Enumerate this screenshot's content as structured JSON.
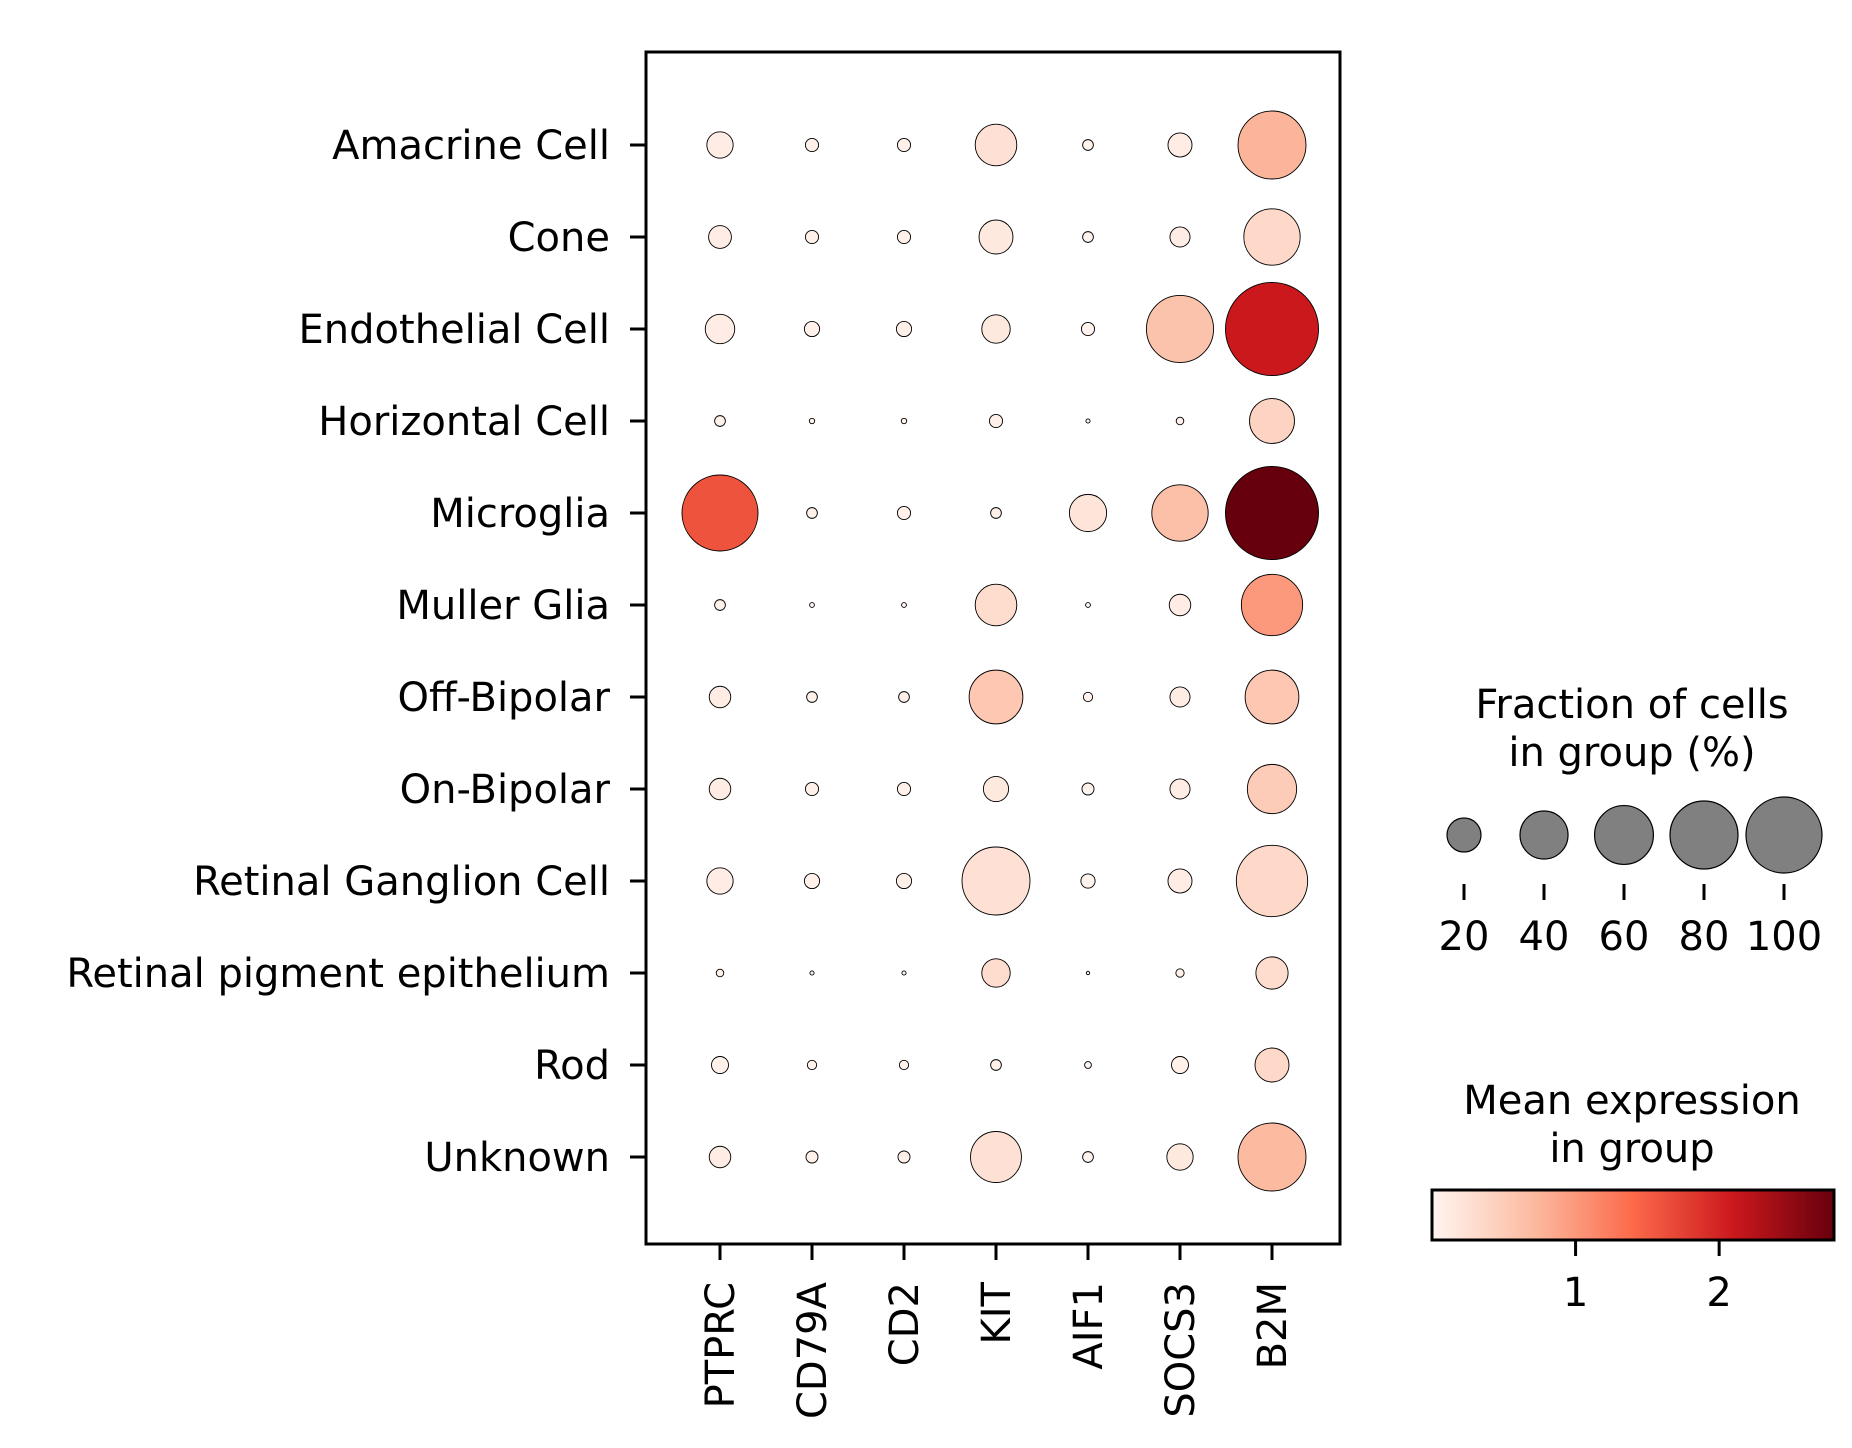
{
  "chart_data": {
    "type": "dotplot",
    "genes": [
      "PTPRC",
      "CD79A",
      "CD2",
      "KIT",
      "AIF1",
      "SOCS3",
      "B2M"
    ],
    "groups": [
      "Amacrine Cell",
      "Cone",
      "Endothelial Cell",
      "Horizontal Cell",
      "Microglia",
      "Muller Glia",
      "Off-Bipolar",
      "On-Bipolar",
      "Retinal Ganglion Cell",
      "Retinal pigment epithelium",
      "Rod",
      "Unknown"
    ],
    "fraction_pct": [
      [
        12,
        3,
        3,
        30,
        2,
        10,
        80
      ],
      [
        9,
        3,
        3,
        20,
        2,
        7,
        55
      ],
      [
        15,
        4,
        4,
        14,
        3,
        78,
        150
      ],
      [
        2,
        0.5,
        0.5,
        3,
        0.3,
        1,
        35
      ],
      [
        100,
        2,
        3,
        2,
        24,
        55,
        150
      ],
      [
        2,
        0.4,
        0.4,
        30,
        0.4,
        8,
        65
      ],
      [
        8,
        2,
        2,
        50,
        1.5,
        7,
        50
      ],
      [
        8,
        3,
        3,
        11,
        2.5,
        7,
        42
      ],
      [
        12,
        4,
        4,
        80,
        3.5,
        10,
        88
      ],
      [
        1,
        0.3,
        0.3,
        14,
        0.2,
        1.2,
        18
      ],
      [
        5,
        1.5,
        1.5,
        2,
        0.8,
        5,
        20
      ],
      [
        8,
        2.5,
        2.5,
        45,
        2,
        12,
        80
      ]
    ],
    "mean_expression": [
      [
        0.1,
        0.05,
        0.05,
        0.25,
        0.03,
        0.1,
        0.75
      ],
      [
        0.1,
        0.05,
        0.05,
        0.15,
        0.03,
        0.1,
        0.35
      ],
      [
        0.1,
        0.05,
        0.05,
        0.15,
        0.03,
        0.6,
        2.1
      ],
      [
        0.05,
        0.02,
        0.02,
        0.05,
        0.01,
        0.05,
        0.4
      ],
      [
        1.6,
        0.05,
        0.05,
        0.05,
        0.2,
        0.65,
        2.8
      ],
      [
        0.05,
        0.02,
        0.02,
        0.3,
        0.01,
        0.1,
        1.0
      ],
      [
        0.1,
        0.05,
        0.05,
        0.55,
        0.03,
        0.1,
        0.55
      ],
      [
        0.1,
        0.05,
        0.05,
        0.15,
        0.03,
        0.1,
        0.5
      ],
      [
        0.1,
        0.05,
        0.05,
        0.25,
        0.03,
        0.1,
        0.35
      ],
      [
        0.05,
        0.02,
        0.02,
        0.3,
        0.01,
        0.05,
        0.3
      ],
      [
        0.05,
        0.02,
        0.02,
        0.05,
        0.01,
        0.05,
        0.35
      ],
      [
        0.1,
        0.05,
        0.05,
        0.25,
        0.03,
        0.15,
        0.7
      ]
    ],
    "size_legend": {
      "title_line1": "Fraction of cells",
      "title_line2": "in group (%)",
      "values": [
        20,
        40,
        60,
        80,
        100
      ],
      "labels": [
        "20",
        "40",
        "60",
        "80",
        "100"
      ]
    },
    "color_legend": {
      "title_line1": "Mean expression",
      "title_line2": "in group",
      "range": [
        0,
        2.8
      ],
      "ticks": [
        1,
        2
      ],
      "tick_labels": [
        "1",
        "2"
      ],
      "colormap": "Reds",
      "colors": [
        "#fff5f0",
        "#fcbba1",
        "#fb6a4a",
        "#cb181d",
        "#67000d"
      ]
    }
  }
}
